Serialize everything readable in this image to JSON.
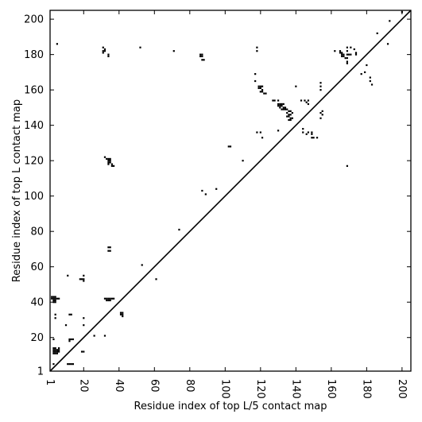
{
  "chart_data": {
    "type": "scatter",
    "title": "",
    "xlabel": "Residue index of top L/5 contact map",
    "ylabel": "Residue index of top L contact map",
    "xlim": [
      1,
      205
    ],
    "ylim": [
      1,
      205
    ],
    "x_ticks": [
      1,
      20,
      40,
      60,
      80,
      100,
      120,
      140,
      160,
      180,
      200
    ],
    "y_ticks": [
      1,
      20,
      40,
      60,
      80,
      100,
      120,
      140,
      160,
      180,
      200
    ],
    "x_tick_rotation": -90,
    "grid": false,
    "marker": "square",
    "color": "#000000",
    "diagonal_line": true,
    "lower_triangle_series": {
      "name": "",
      "points": [
        [
          3,
          5
        ],
        [
          11,
          5
        ],
        [
          12,
          5
        ],
        [
          13,
          5
        ],
        [
          14,
          5
        ],
        [
          3,
          11
        ],
        [
          4,
          11
        ],
        [
          5,
          11
        ],
        [
          3,
          12
        ],
        [
          4,
          12
        ],
        [
          5,
          12
        ],
        [
          6,
          12
        ],
        [
          3,
          13
        ],
        [
          4,
          13
        ],
        [
          5,
          13
        ],
        [
          6,
          13
        ],
        [
          3,
          14
        ],
        [
          4,
          14
        ],
        [
          6,
          14
        ],
        [
          3,
          19
        ],
        [
          12,
          18
        ],
        [
          13,
          19
        ],
        [
          14,
          19
        ],
        [
          12,
          19
        ],
        [
          26,
          21
        ],
        [
          32,
          21
        ],
        [
          19,
          12
        ],
        [
          20,
          12
        ],
        [
          42,
          32
        ],
        [
          41,
          33
        ],
        [
          42,
          33
        ],
        [
          41,
          34
        ],
        [
          42,
          34
        ],
        [
          33,
          41
        ],
        [
          34,
          41
        ],
        [
          35,
          41
        ],
        [
          33,
          42
        ],
        [
          34,
          42
        ],
        [
          35,
          42
        ],
        [
          36,
          42
        ],
        [
          32,
          42
        ],
        [
          37,
          42
        ],
        [
          61,
          53
        ],
        [
          53,
          61
        ],
        [
          74,
          81
        ],
        [
          87,
          103
        ],
        [
          89,
          101
        ],
        [
          95,
          104
        ],
        [
          102,
          128
        ],
        [
          103,
          128
        ],
        [
          110,
          120
        ],
        [
          118,
          136
        ],
        [
          120,
          136
        ],
        [
          121,
          133
        ],
        [
          130,
          137
        ],
        [
          144,
          136
        ],
        [
          144,
          138
        ],
        [
          146,
          135
        ],
        [
          147,
          136
        ],
        [
          149,
          133
        ],
        [
          149,
          135
        ],
        [
          150,
          133
        ],
        [
          152,
          133
        ],
        [
          149,
          136
        ],
        [
          154,
          144
        ],
        [
          154,
          147
        ],
        [
          155,
          146
        ],
        [
          155,
          148
        ],
        [
          169,
          117
        ]
      ]
    },
    "upper_triangle_series": {
      "name": "",
      "points": [
        [
          5,
          186
        ],
        [
          4,
          33
        ],
        [
          4,
          31
        ],
        [
          3,
          40
        ],
        [
          4,
          40
        ],
        [
          3,
          41
        ],
        [
          4,
          41
        ],
        [
          2,
          42
        ],
        [
          3,
          42
        ],
        [
          4,
          42
        ],
        [
          5,
          42
        ],
        [
          6,
          42
        ],
        [
          2,
          43
        ],
        [
          3,
          43
        ],
        [
          4,
          43
        ],
        [
          11,
          55
        ],
        [
          10,
          27
        ],
        [
          12,
          33
        ],
        [
          13,
          33
        ],
        [
          19,
          53
        ],
        [
          20,
          53
        ],
        [
          20,
          55
        ],
        [
          20,
          52
        ],
        [
          18,
          53
        ],
        [
          20,
          31
        ],
        [
          20,
          27
        ],
        [
          31,
          184
        ],
        [
          32,
          183
        ],
        [
          31,
          182
        ],
        [
          32,
          182
        ],
        [
          31,
          181
        ],
        [
          34,
          180
        ],
        [
          34,
          179
        ],
        [
          32,
          122
        ],
        [
          33,
          121
        ],
        [
          34,
          121
        ],
        [
          35,
          121
        ],
        [
          34,
          120
        ],
        [
          35,
          120
        ],
        [
          34,
          119
        ],
        [
          35,
          119
        ],
        [
          36,
          118
        ],
        [
          34,
          118
        ],
        [
          37,
          117
        ],
        [
          36,
          117
        ],
        [
          34,
          71
        ],
        [
          35,
          71
        ],
        [
          34,
          69
        ],
        [
          35,
          69
        ],
        [
          52,
          184
        ],
        [
          71,
          182
        ],
        [
          86,
          180
        ],
        [
          87,
          180
        ],
        [
          86,
          179
        ],
        [
          87,
          179
        ],
        [
          87,
          177
        ],
        [
          88,
          177
        ],
        [
          118,
          184
        ],
        [
          118,
          182
        ],
        [
          117,
          169
        ],
        [
          117,
          165
        ],
        [
          119,
          162
        ],
        [
          120,
          162
        ],
        [
          121,
          162
        ],
        [
          119,
          161
        ],
        [
          120,
          161
        ],
        [
          121,
          160
        ],
        [
          120,
          159
        ],
        [
          121,
          159
        ],
        [
          122,
          158
        ],
        [
          123,
          158
        ],
        [
          127,
          154
        ],
        [
          128,
          154
        ],
        [
          130,
          154
        ],
        [
          130,
          152
        ],
        [
          131,
          152
        ],
        [
          132,
          152
        ],
        [
          133,
          152
        ],
        [
          130,
          151
        ],
        [
          131,
          151
        ],
        [
          132,
          151
        ],
        [
          133,
          150
        ],
        [
          134,
          150
        ],
        [
          131,
          150
        ],
        [
          132,
          149
        ],
        [
          133,
          149
        ],
        [
          134,
          149
        ],
        [
          135,
          149
        ],
        [
          136,
          148
        ],
        [
          135,
          147
        ],
        [
          136,
          146
        ],
        [
          135,
          145
        ],
        [
          136,
          145
        ],
        [
          137,
          146
        ],
        [
          137,
          144
        ],
        [
          138,
          144
        ],
        [
          136,
          143
        ],
        [
          137,
          143
        ],
        [
          137,
          148
        ],
        [
          138,
          147
        ],
        [
          140,
          162
        ],
        [
          143,
          154
        ],
        [
          145,
          154
        ],
        [
          146,
          153
        ],
        [
          147,
          154
        ],
        [
          147,
          152
        ],
        [
          154,
          164
        ],
        [
          154,
          162
        ],
        [
          154,
          160
        ],
        [
          162,
          182
        ],
        [
          165,
          182
        ],
        [
          165,
          181
        ],
        [
          166,
          181
        ],
        [
          166,
          180
        ],
        [
          167,
          180
        ],
        [
          167,
          179
        ],
        [
          166,
          179
        ],
        [
          169,
          184
        ],
        [
          171,
          184
        ],
        [
          169,
          182
        ],
        [
          169,
          180
        ],
        [
          170,
          180
        ],
        [
          171,
          180
        ],
        [
          168,
          178
        ],
        [
          169,
          178
        ],
        [
          169,
          176
        ],
        [
          169,
          175
        ],
        [
          173,
          183
        ],
        [
          174,
          181
        ],
        [
          174,
          180
        ],
        [
          177,
          169
        ],
        [
          179,
          170
        ],
        [
          180,
          174
        ],
        [
          182,
          167
        ],
        [
          182,
          165
        ],
        [
          183,
          163
        ],
        [
          186,
          192
        ],
        [
          192,
          186
        ],
        [
          193,
          199
        ],
        [
          200,
          204
        ]
      ]
    }
  }
}
